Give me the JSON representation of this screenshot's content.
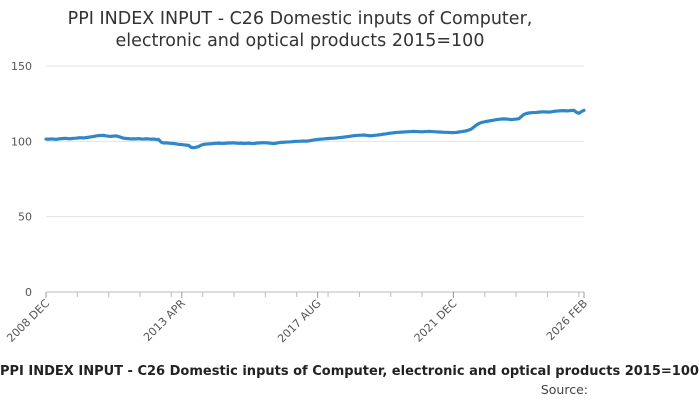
{
  "chart_data": {
    "type": "line",
    "title": "PPI INDEX INPUT - C26 Domestic inputs of Computer, electronic and optical products 2015=100",
    "title_lines": [
      "PPI INDEX INPUT - C26 Domestic inputs of Computer,",
      "electronic and optical products 2015=100"
    ],
    "xlabel": "",
    "ylabel": "",
    "ylim": [
      0,
      150
    ],
    "yticks": [
      0,
      50,
      100,
      150
    ],
    "grid": true,
    "legend": "none",
    "x_start": "2008 DEC",
    "x_end": "2026 FEB",
    "xticks": [
      "2008 DEC",
      "2013 APR",
      "2017 AUG",
      "2021 DEC",
      "2026 FEB"
    ],
    "series_color": "#2f87c7",
    "series": [
      {
        "values": [
          101.5,
          101.4,
          101.6,
          101.5,
          101.3,
          101.6,
          101.8,
          101.9,
          102.0,
          101.7,
          101.8,
          102.0,
          102.1,
          102.3,
          102.4,
          102.2,
          102.5,
          102.7,
          103.0,
          103.2,
          103.6,
          103.8,
          103.9,
          104.0,
          103.6,
          103.4,
          103.3,
          103.5,
          103.6,
          103.2,
          102.6,
          102.1,
          101.9,
          101.8,
          101.6,
          101.7,
          101.6,
          101.8,
          101.6,
          101.5,
          101.7,
          101.6,
          101.4,
          101.5,
          101.3,
          101.2,
          99.5,
          98.9,
          99.0,
          98.8,
          98.7,
          98.5,
          98.3,
          98.0,
          97.9,
          97.7,
          97.5,
          97.3,
          96.0,
          95.8,
          96.1,
          96.5,
          97.5,
          98.0,
          98.2,
          98.3,
          98.4,
          98.6,
          98.7,
          98.8,
          98.7,
          98.6,
          98.8,
          98.9,
          98.9,
          99.0,
          98.8,
          98.7,
          98.8,
          98.6,
          98.7,
          98.8,
          98.6,
          98.5,
          98.8,
          98.9,
          99.0,
          99.1,
          99.0,
          98.9,
          98.7,
          98.5,
          98.8,
          99.1,
          99.3,
          99.4,
          99.5,
          99.6,
          99.7,
          99.9,
          100.0,
          100.0,
          100.1,
          100.2,
          100.1,
          100.3,
          100.6,
          100.9,
          101.1,
          101.3,
          101.5,
          101.6,
          101.8,
          101.9,
          102.0,
          102.1,
          102.2,
          102.4,
          102.6,
          102.8,
          103.0,
          103.2,
          103.5,
          103.7,
          103.9,
          104.0,
          104.1,
          104.2,
          104.0,
          103.8,
          103.7,
          103.9,
          104.1,
          104.3,
          104.5,
          104.8,
          105.0,
          105.3,
          105.5,
          105.7,
          105.9,
          106.0,
          106.1,
          106.2,
          106.3,
          106.4,
          106.5,
          106.6,
          106.5,
          106.4,
          106.3,
          106.4,
          106.5,
          106.6,
          106.5,
          106.4,
          106.3,
          106.2,
          106.1,
          106.0,
          106.0,
          105.9,
          105.8,
          105.8,
          105.9,
          106.2,
          106.4,
          106.7,
          107.0,
          107.5,
          108.2,
          109.5,
          110.8,
          111.8,
          112.5,
          112.9,
          113.2,
          113.5,
          113.8,
          114.1,
          114.4,
          114.6,
          114.8,
          114.9,
          114.8,
          114.6,
          114.4,
          114.6,
          114.8,
          115.0,
          116.5,
          117.9,
          118.5,
          118.8,
          119.0,
          119.1,
          119.2,
          119.4,
          119.5,
          119.6,
          119.5,
          119.4,
          119.6,
          119.9,
          120.1,
          120.2,
          120.3,
          120.4,
          120.2,
          120.3,
          120.5,
          120.6,
          119.2,
          118.6,
          119.8,
          120.6
        ]
      }
    ]
  },
  "footer": {
    "title": "PPI INDEX INPUT - C26 Domestic inputs of Computer, electronic and optical products 2015=100",
    "source": "Source:"
  }
}
